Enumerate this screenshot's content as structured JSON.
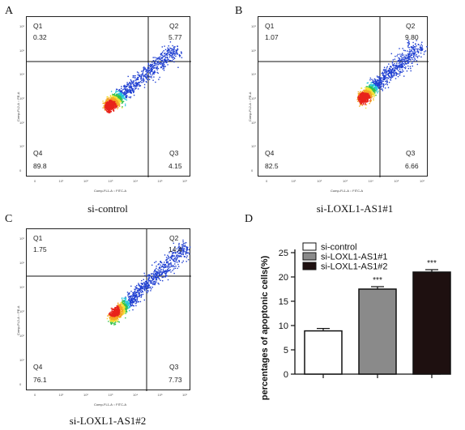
{
  "panels": [
    {
      "letter": "A",
      "caption": "si-control",
      "q1": {
        "label": "Q1",
        "value": "0.32"
      },
      "q2": {
        "label": "Q2",
        "value": "5.77"
      },
      "q3": {
        "label": "Q3",
        "value": "4.15"
      },
      "q4": {
        "label": "Q4",
        "value": "89.8"
      },
      "ylabel": "Comp-FL2-A :: PE-A",
      "xlabel": "Comp-FL1-A :: FITC-A"
    },
    {
      "letter": "B",
      "caption": "si-LOXL1-AS1#1",
      "q1": {
        "label": "Q1",
        "value": "1.07"
      },
      "q2": {
        "label": "Q2",
        "value": "9.80"
      },
      "q3": {
        "label": "Q3",
        "value": "6.66"
      },
      "q4": {
        "label": "Q4",
        "value": "82.5"
      },
      "ylabel": "Comp-FL2-A :: PE-A",
      "xlabel": "Comp-FL1-A :: FITC-A"
    },
    {
      "letter": "C",
      "caption": "si-LOXL1-AS1#2",
      "q1": {
        "label": "Q1",
        "value": "1.75"
      },
      "q2": {
        "label": "Q2",
        "value": "14.4"
      },
      "q3": {
        "label": "Q3",
        "value": "7.73"
      },
      "q4": {
        "label": "Q4",
        "value": "76.1"
      },
      "ylabel": "Comp-FL2-A :: PE-A",
      "xlabel": "Comp-FL1-A :: FITC-A"
    }
  ],
  "flow_ticks": [
    "0",
    "10¹",
    "10²",
    "10³",
    "10⁴",
    "10⁵",
    "10⁶"
  ],
  "panel_d_letter": "D",
  "chart_data": {
    "type": "bar",
    "categories": [
      "si-control",
      "si-LOXL1-AS1#1",
      "si-LOXL1-AS1#2"
    ],
    "values": [
      8.9,
      17.5,
      21.0
    ],
    "errors": [
      0.5,
      0.5,
      0.5
    ],
    "annotations": [
      "",
      "***",
      "***"
    ],
    "colors": [
      "#ffffff",
      "#8a8a8a",
      "#1e1010"
    ],
    "ylabel": "percentages of apoptonic cells(%)",
    "ylim": [
      0,
      25
    ],
    "yticks": [
      0,
      5,
      10,
      15,
      20,
      25
    ],
    "legend": [
      "si-control",
      "si-LOXL1-AS1#1",
      "si-LOXL1-AS1#2"
    ],
    "legend_position": "top-left"
  }
}
